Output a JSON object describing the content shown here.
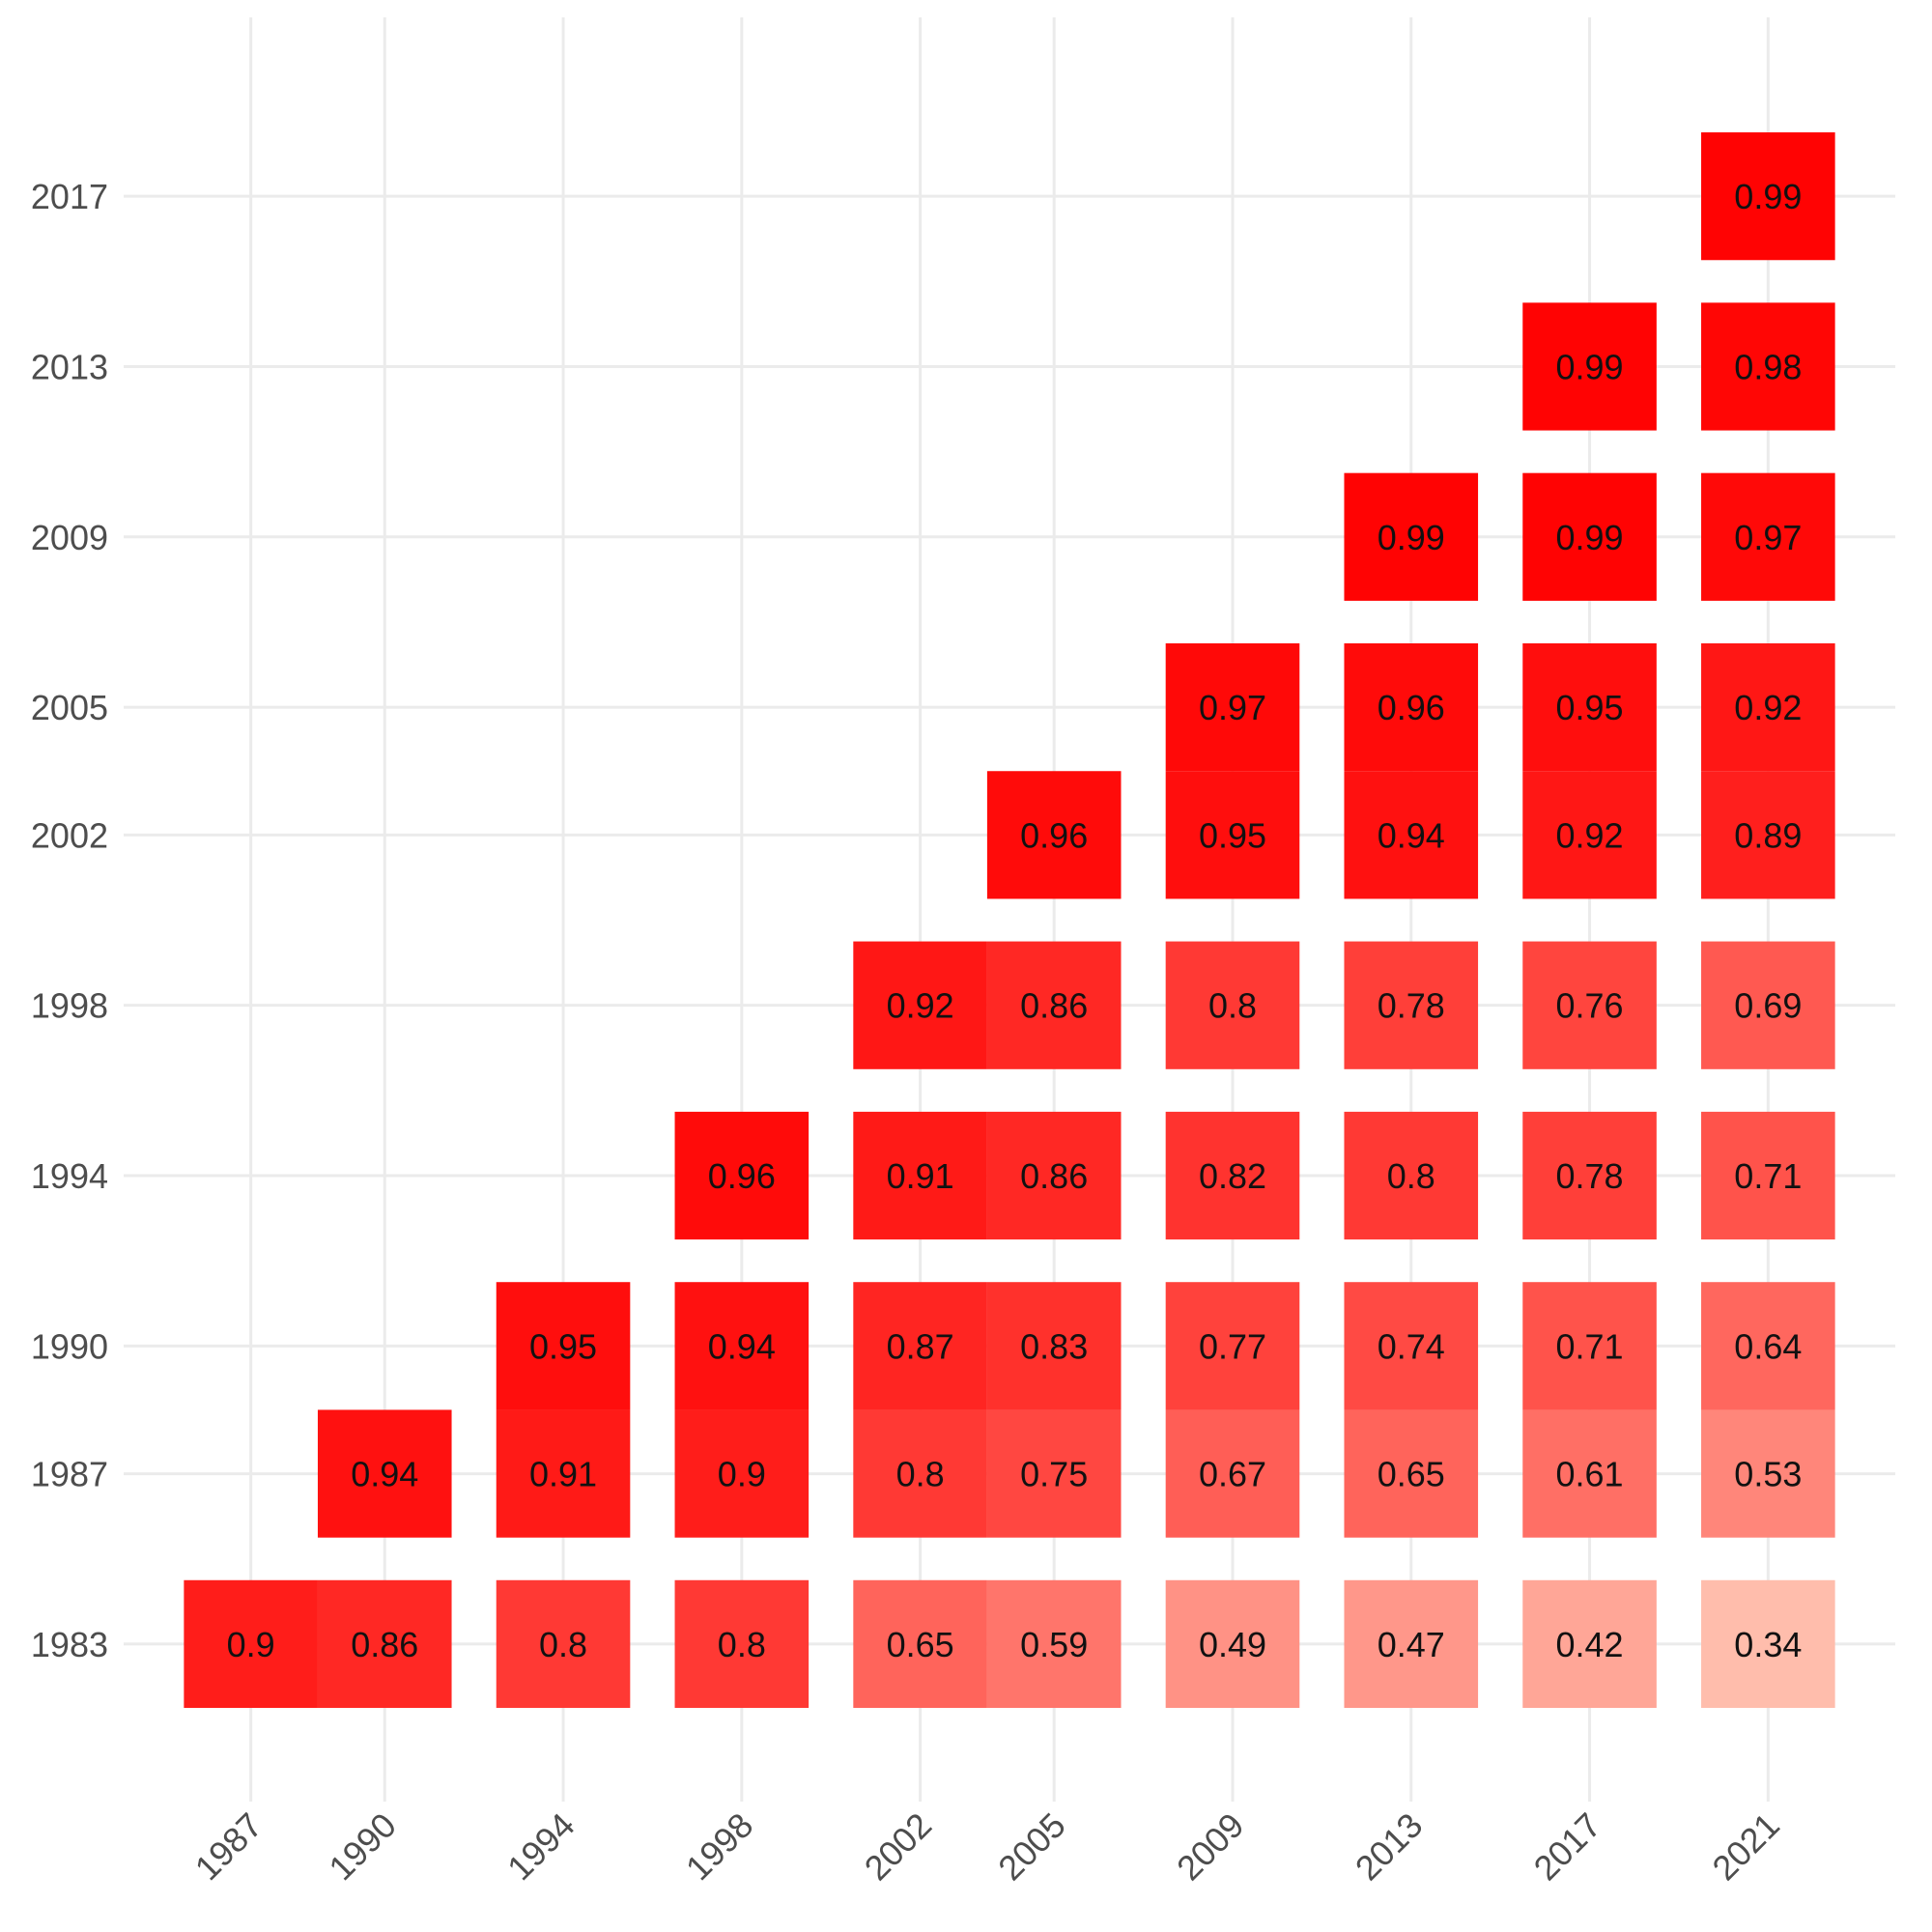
{
  "chart_data": {
    "type": "heatmap",
    "title": "",
    "xlabel": "",
    "ylabel": "",
    "x_categories": [
      "1987",
      "1990",
      "1994",
      "1998",
      "2002",
      "2005",
      "2009",
      "2013",
      "2017",
      "2021"
    ],
    "y_categories": [
      "1983",
      "1987",
      "1990",
      "1994",
      "1998",
      "2002",
      "2005",
      "2009",
      "2013",
      "2017"
    ],
    "color_scale": {
      "low": "#ffc8b6",
      "high": "#ff0000",
      "min": 0.3,
      "max": 1.0
    },
    "grid": true,
    "legend": "none",
    "cells": [
      {
        "x": "1987",
        "y": "1983",
        "value": 0.9,
        "label": "0.9"
      },
      {
        "x": "1990",
        "y": "1983",
        "value": 0.86,
        "label": "0.86"
      },
      {
        "x": "1994",
        "y": "1983",
        "value": 0.8,
        "label": "0.8"
      },
      {
        "x": "1998",
        "y": "1983",
        "value": 0.8,
        "label": "0.8"
      },
      {
        "x": "2002",
        "y": "1983",
        "value": 0.65,
        "label": "0.65"
      },
      {
        "x": "2005",
        "y": "1983",
        "value": 0.59,
        "label": "0.59"
      },
      {
        "x": "2009",
        "y": "1983",
        "value": 0.49,
        "label": "0.49"
      },
      {
        "x": "2013",
        "y": "1983",
        "value": 0.47,
        "label": "0.47"
      },
      {
        "x": "2017",
        "y": "1983",
        "value": 0.42,
        "label": "0.42"
      },
      {
        "x": "2021",
        "y": "1983",
        "value": 0.34,
        "label": "0.34"
      },
      {
        "x": "1990",
        "y": "1987",
        "value": 0.94,
        "label": "0.94"
      },
      {
        "x": "1994",
        "y": "1987",
        "value": 0.91,
        "label": "0.91"
      },
      {
        "x": "1998",
        "y": "1987",
        "value": 0.9,
        "label": "0.9"
      },
      {
        "x": "2002",
        "y": "1987",
        "value": 0.8,
        "label": "0.8"
      },
      {
        "x": "2005",
        "y": "1987",
        "value": 0.75,
        "label": "0.75"
      },
      {
        "x": "2009",
        "y": "1987",
        "value": 0.67,
        "label": "0.67"
      },
      {
        "x": "2013",
        "y": "1987",
        "value": 0.65,
        "label": "0.65"
      },
      {
        "x": "2017",
        "y": "1987",
        "value": 0.61,
        "label": "0.61"
      },
      {
        "x": "2021",
        "y": "1987",
        "value": 0.53,
        "label": "0.53"
      },
      {
        "x": "1994",
        "y": "1990",
        "value": 0.95,
        "label": "0.95"
      },
      {
        "x": "1998",
        "y": "1990",
        "value": 0.94,
        "label": "0.94"
      },
      {
        "x": "2002",
        "y": "1990",
        "value": 0.87,
        "label": "0.87"
      },
      {
        "x": "2005",
        "y": "1990",
        "value": 0.83,
        "label": "0.83"
      },
      {
        "x": "2009",
        "y": "1990",
        "value": 0.77,
        "label": "0.77"
      },
      {
        "x": "2013",
        "y": "1990",
        "value": 0.74,
        "label": "0.74"
      },
      {
        "x": "2017",
        "y": "1990",
        "value": 0.71,
        "label": "0.71"
      },
      {
        "x": "2021",
        "y": "1990",
        "value": 0.64,
        "label": "0.64"
      },
      {
        "x": "1998",
        "y": "1994",
        "value": 0.96,
        "label": "0.96"
      },
      {
        "x": "2002",
        "y": "1994",
        "value": 0.91,
        "label": "0.91"
      },
      {
        "x": "2005",
        "y": "1994",
        "value": 0.86,
        "label": "0.86"
      },
      {
        "x": "2009",
        "y": "1994",
        "value": 0.82,
        "label": "0.82"
      },
      {
        "x": "2013",
        "y": "1994",
        "value": 0.8,
        "label": "0.8"
      },
      {
        "x": "2017",
        "y": "1994",
        "value": 0.78,
        "label": "0.78"
      },
      {
        "x": "2021",
        "y": "1994",
        "value": 0.71,
        "label": "0.71"
      },
      {
        "x": "2002",
        "y": "1998",
        "value": 0.92,
        "label": "0.92"
      },
      {
        "x": "2005",
        "y": "1998",
        "value": 0.86,
        "label": "0.86"
      },
      {
        "x": "2009",
        "y": "1998",
        "value": 0.8,
        "label": "0.8"
      },
      {
        "x": "2013",
        "y": "1998",
        "value": 0.78,
        "label": "0.78"
      },
      {
        "x": "2017",
        "y": "1998",
        "value": 0.76,
        "label": "0.76"
      },
      {
        "x": "2021",
        "y": "1998",
        "value": 0.69,
        "label": "0.69"
      },
      {
        "x": "2005",
        "y": "2002",
        "value": 0.96,
        "label": "0.96"
      },
      {
        "x": "2009",
        "y": "2002",
        "value": 0.95,
        "label": "0.95"
      },
      {
        "x": "2013",
        "y": "2002",
        "value": 0.94,
        "label": "0.94"
      },
      {
        "x": "2017",
        "y": "2002",
        "value": 0.92,
        "label": "0.92"
      },
      {
        "x": "2021",
        "y": "2002",
        "value": 0.89,
        "label": "0.89"
      },
      {
        "x": "2009",
        "y": "2005",
        "value": 0.97,
        "label": "0.97"
      },
      {
        "x": "2013",
        "y": "2005",
        "value": 0.96,
        "label": "0.96"
      },
      {
        "x": "2017",
        "y": "2005",
        "value": 0.95,
        "label": "0.95"
      },
      {
        "x": "2021",
        "y": "2005",
        "value": 0.92,
        "label": "0.92"
      },
      {
        "x": "2013",
        "y": "2009",
        "value": 0.99,
        "label": "0.99"
      },
      {
        "x": "2017",
        "y": "2009",
        "value": 0.99,
        "label": "0.99"
      },
      {
        "x": "2021",
        "y": "2009",
        "value": 0.97,
        "label": "0.97"
      },
      {
        "x": "2017",
        "y": "2013",
        "value": 0.99,
        "label": "0.99"
      },
      {
        "x": "2021",
        "y": "2013",
        "value": 0.98,
        "label": "0.98"
      },
      {
        "x": "2021",
        "y": "2017",
        "value": 0.99,
        "label": "0.99"
      }
    ]
  }
}
